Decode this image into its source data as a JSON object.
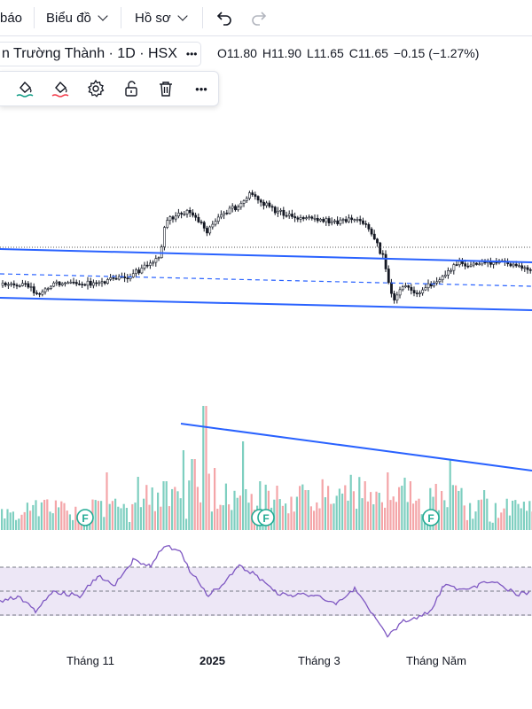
{
  "topbar": {
    "partial_label": "báo",
    "chart_menu": "Biểu đồ",
    "profile_menu": "Hồ sơ"
  },
  "symbol": {
    "name": "n Trường Thành · 1D · HSX",
    "more": "•••"
  },
  "ohlc": {
    "open": "O11.80",
    "high": "H11.90",
    "low": "L11.65",
    "close": "C11.65",
    "change": "−0.15 (−1.27%)",
    "change_color": "#131722"
  },
  "drawing_toolbar": {
    "icons": [
      "fill-bucket-green-icon",
      "fill-bucket-red-icon",
      "gear-icon",
      "lock-icon",
      "trash-icon",
      "more-icon"
    ],
    "more": "•••"
  },
  "colors": {
    "up": "#089981",
    "down": "#f23645",
    "vol_up": "#7ecfc0",
    "vol_down": "#f4a5a8",
    "trendline": "#2962ff",
    "rsi_line": "#7e57c2",
    "rsi_band": "#ede7f6"
  },
  "chart_data": {
    "type": "candlestick",
    "instrument": "n Trường Thành · 1D · HSX",
    "x_axis_labels": [
      "Tháng 11",
      "2025",
      "Tháng 3",
      "Tháng Năm"
    ],
    "events": [
      "F",
      "F",
      "F"
    ],
    "panes": [
      "price",
      "volume",
      "rsi"
    ]
  },
  "xaxis": {
    "labels": [
      "Tháng 11",
      "2025",
      "Tháng 3",
      "Tháng Năm"
    ]
  },
  "event_marker": "F"
}
